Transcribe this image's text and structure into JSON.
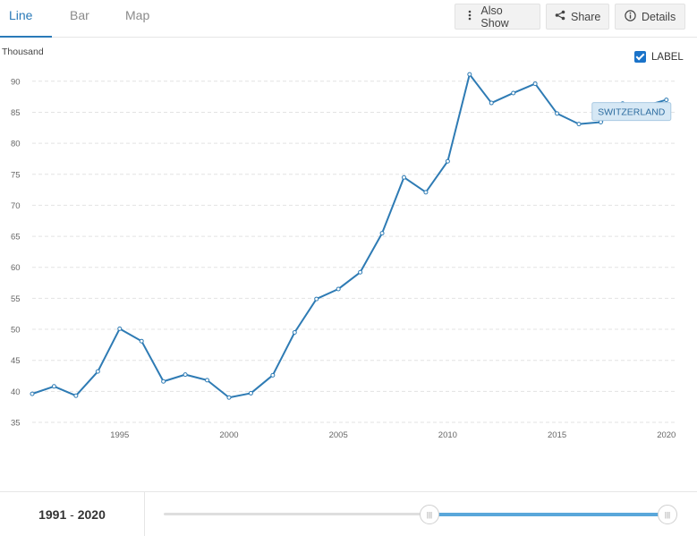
{
  "tabs": [
    {
      "label": "Line",
      "active": true
    },
    {
      "label": "Bar",
      "active": false
    },
    {
      "label": "Map",
      "active": false
    }
  ],
  "toolbar": {
    "also_show": {
      "label": "Also Show",
      "icon": "vertical-dots-icon"
    },
    "share": {
      "label": "Share",
      "icon": "share-icon"
    },
    "details": {
      "label": "Details",
      "icon": "info-icon"
    }
  },
  "label_toggle": {
    "label": "LABEL",
    "checked": true
  },
  "colors": {
    "accent": "#2a7ab8",
    "series_line": "#2e7bb4",
    "label_bg": "#d6e8f5",
    "slider_fill": "#5aa7da"
  },
  "chart_data": {
    "type": "line",
    "unit_label": "Thousand",
    "ylim": [
      35,
      93
    ],
    "yticks": [
      35,
      40,
      45,
      50,
      55,
      60,
      65,
      70,
      75,
      80,
      85,
      90
    ],
    "xlim": [
      1991,
      2020.5
    ],
    "xticks": [
      1995,
      2000,
      2005,
      2010,
      2015,
      2020
    ],
    "grid": true,
    "series": [
      {
        "name": "SWITZERLAND",
        "x": [
          1991,
          1992,
          1993,
          1994,
          1995,
          1996,
          1997,
          1998,
          1999,
          2000,
          2001,
          2002,
          2003,
          2004,
          2005,
          2006,
          2007,
          2008,
          2009,
          2010,
          2011,
          2012,
          2013,
          2014,
          2015,
          2016,
          2017,
          2018,
          2019,
          2020
        ],
        "y": [
          39.6,
          40.8,
          39.3,
          43.2,
          50.1,
          48.1,
          41.6,
          42.7,
          41.8,
          39.0,
          39.7,
          42.6,
          49.5,
          54.9,
          56.5,
          59.2,
          65.5,
          74.5,
          72.1,
          77.1,
          91.1,
          86.5,
          88.1,
          89.6,
          84.8,
          83.1,
          83.4,
          86.4,
          86.0,
          87.0
        ]
      }
    ]
  },
  "range": {
    "start": "1991",
    "separator": " - ",
    "end": "2020"
  },
  "slider": {
    "left_handle": "|||",
    "right_handle": "|||"
  }
}
